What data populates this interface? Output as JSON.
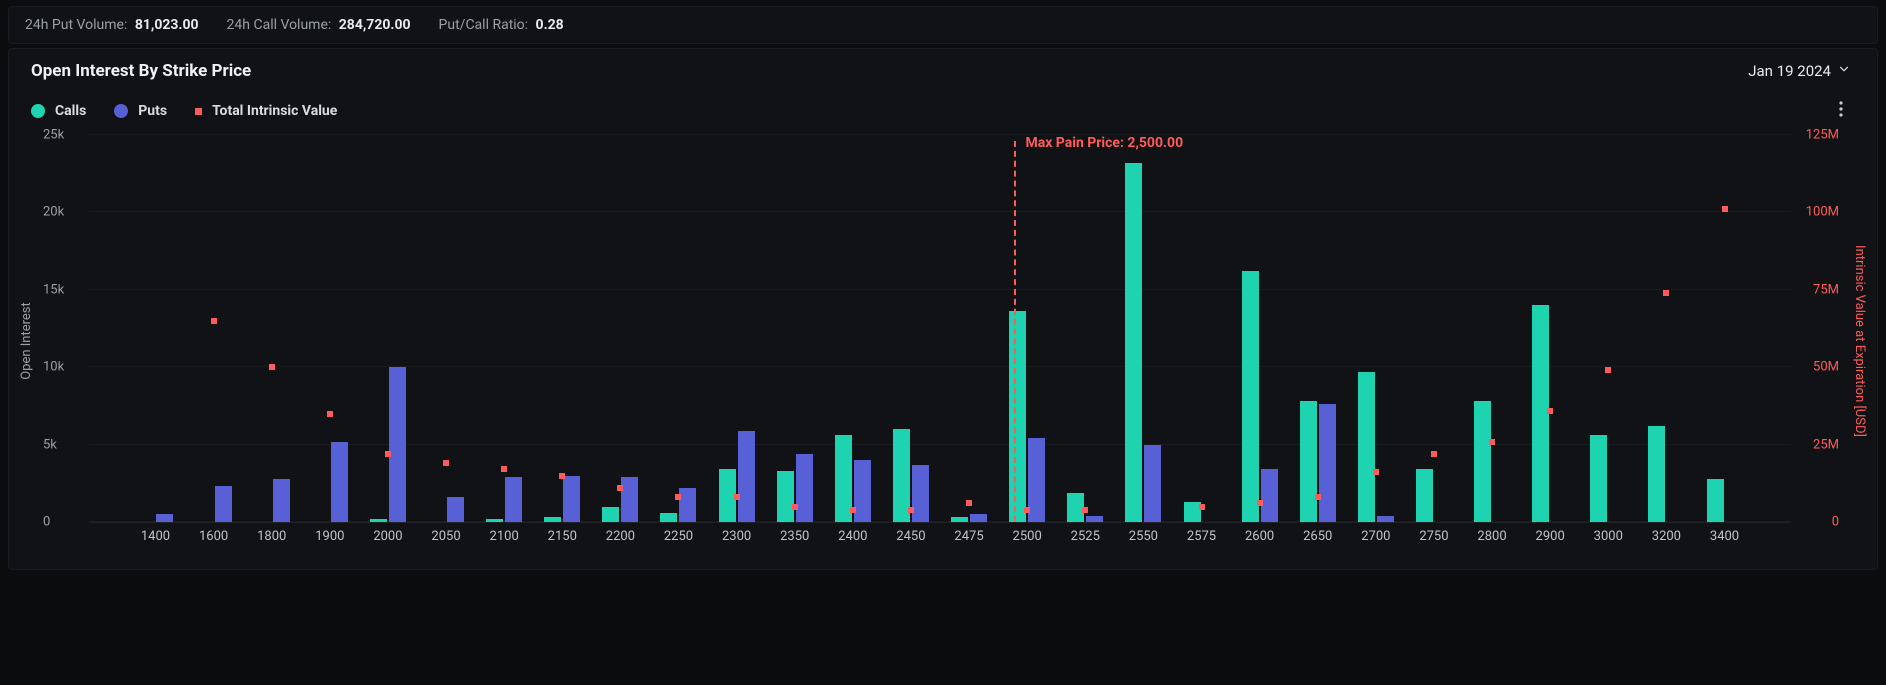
{
  "top_stats": {
    "put_volume_label": "24h Put Volume:",
    "put_volume_value": "81,023.00",
    "call_volume_label": "24h Call Volume:",
    "call_volume_value": "284,720.00",
    "ratio_label": "Put/Call Ratio:",
    "ratio_value": "0.28"
  },
  "title": "Open Interest By Strike Price",
  "date_selector": {
    "label": "Jan 19 2024"
  },
  "legend": {
    "calls": "Calls",
    "puts": "Puts",
    "intrinsic": "Total Intrinsic Value"
  },
  "colors": {
    "calls": "#1ed3b0",
    "puts": "#5860d6",
    "intrinsic": "#ff5b5b",
    "text": "#d9dde3",
    "muted": "#9aa0a6",
    "background": "#0b0c0e",
    "panel": "#111215"
  },
  "max_pain": {
    "label": "Max Pain Price: 2,500.00",
    "strike": "2500"
  },
  "chart": {
    "type": "grouped-bar-with-scatter",
    "left_axis": {
      "label": "Open Interest",
      "min": 0,
      "max": 25000,
      "ticks": [
        0,
        5000,
        10000,
        15000,
        20000,
        25000
      ],
      "tick_labels": [
        "0",
        "5k",
        "10k",
        "15k",
        "20k",
        "25k"
      ]
    },
    "right_axis": {
      "label": "Intrinsic Value at Expiration [USD]",
      "min": 0,
      "max": 125000000,
      "ticks": [
        0,
        25000000,
        50000000,
        75000000,
        100000000,
        125000000
      ],
      "tick_labels": [
        "0",
        "25M",
        "50M",
        "75M",
        "100M",
        "125M"
      ]
    },
    "categories": [
      {
        "strike": "1400",
        "calls": 0,
        "puts": 500,
        "intrinsic": null
      },
      {
        "strike": "1600",
        "calls": 0,
        "puts": 2300,
        "intrinsic": 65000000
      },
      {
        "strike": "1800",
        "calls": 0,
        "puts": 2800,
        "intrinsic": 50000000
      },
      {
        "strike": "1900",
        "calls": 0,
        "puts": 5200,
        "intrinsic": 35000000
      },
      {
        "strike": "2000",
        "calls": 200,
        "puts": 10000,
        "intrinsic": 22000000
      },
      {
        "strike": "2050",
        "calls": 0,
        "puts": 1600,
        "intrinsic": 19000000
      },
      {
        "strike": "2100",
        "calls": 200,
        "puts": 2900,
        "intrinsic": 17000000
      },
      {
        "strike": "2150",
        "calls": 300,
        "puts": 3000,
        "intrinsic": 15000000
      },
      {
        "strike": "2200",
        "calls": 1000,
        "puts": 2900,
        "intrinsic": 11000000
      },
      {
        "strike": "2250",
        "calls": 600,
        "puts": 2200,
        "intrinsic": 8000000
      },
      {
        "strike": "2300",
        "calls": 3400,
        "puts": 5900,
        "intrinsic": 8000000
      },
      {
        "strike": "2350",
        "calls": 3300,
        "puts": 4400,
        "intrinsic": 5000000
      },
      {
        "strike": "2400",
        "calls": 5600,
        "puts": 4000,
        "intrinsic": 4000000
      },
      {
        "strike": "2450",
        "calls": 6000,
        "puts": 3700,
        "intrinsic": 4000000
      },
      {
        "strike": "2475",
        "calls": 300,
        "puts": 500,
        "intrinsic": 6000000
      },
      {
        "strike": "2500",
        "calls": 13600,
        "puts": 5400,
        "intrinsic": 4000000
      },
      {
        "strike": "2525",
        "calls": 1900,
        "puts": 400,
        "intrinsic": 4000000
      },
      {
        "strike": "2550",
        "calls": 23200,
        "puts": 5000,
        "intrinsic": null
      },
      {
        "strike": "2575",
        "calls": 1300,
        "puts": 0,
        "intrinsic": 5000000
      },
      {
        "strike": "2600",
        "calls": 16200,
        "puts": 3400,
        "intrinsic": 6000000
      },
      {
        "strike": "2650",
        "calls": 7800,
        "puts": 7600,
        "intrinsic": 8000000
      },
      {
        "strike": "2700",
        "calls": 9700,
        "puts": 400,
        "intrinsic": 16000000
      },
      {
        "strike": "2750",
        "calls": 3400,
        "puts": 0,
        "intrinsic": 22000000
      },
      {
        "strike": "2800",
        "calls": 7800,
        "puts": 0,
        "intrinsic": 26000000
      },
      {
        "strike": "2900",
        "calls": 14000,
        "puts": 0,
        "intrinsic": 36000000
      },
      {
        "strike": "3000",
        "calls": 5600,
        "puts": 0,
        "intrinsic": 49000000
      },
      {
        "strike": "3200",
        "calls": 6200,
        "puts": 0,
        "intrinsic": 74000000
      },
      {
        "strike": "3400",
        "calls": 2800,
        "puts": 0,
        "intrinsic": 101000000
      }
    ]
  }
}
